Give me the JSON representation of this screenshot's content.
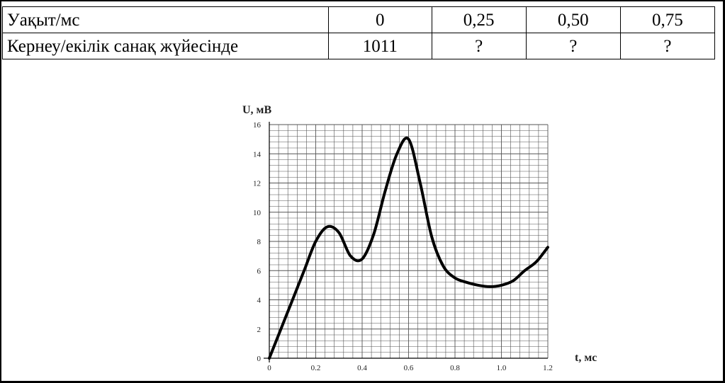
{
  "table": {
    "rows": [
      {
        "label": "Уақыт/мс",
        "cells": [
          "0",
          "0,25",
          "0,50",
          "0,75"
        ]
      },
      {
        "label": "Кернеу/екілік санақ жүйесінде",
        "cells": [
          "1011",
          "?",
          "?",
          "?"
        ]
      }
    ]
  },
  "chart_data": {
    "type": "line",
    "xlabel": "t, мс",
    "ylabel": "U, мВ",
    "xlim": [
      0,
      1.2
    ],
    "ylim": [
      0,
      16
    ],
    "x_ticks": [
      0,
      0.2,
      0.4,
      0.6,
      0.8,
      1.0,
      1.2
    ],
    "y_ticks": [
      0,
      2,
      4,
      6,
      8,
      10,
      12,
      14,
      16
    ],
    "x_tick_labels": [
      "0",
      "0.2",
      "0.4",
      "0.6",
      "0.8",
      "1.0",
      "1.2"
    ],
    "y_tick_labels": [
      "0",
      "2",
      "4",
      "6",
      "8",
      "10",
      "12",
      "14",
      "16"
    ],
    "grid": true,
    "series": [
      {
        "x": [
          0,
          0.05,
          0.1,
          0.15,
          0.2,
          0.25,
          0.3,
          0.35,
          0.4,
          0.45,
          0.5,
          0.55,
          0.6,
          0.65,
          0.7,
          0.75,
          0.8,
          0.85,
          0.9,
          0.95,
          1.0,
          1.05,
          1.1,
          1.15,
          1.2
        ],
        "y": [
          0,
          2.0,
          4.0,
          6.0,
          8.0,
          9.0,
          8.6,
          7.0,
          6.8,
          8.5,
          11.5,
          14.0,
          15.0,
          12.0,
          8.3,
          6.3,
          5.5,
          5.2,
          5.0,
          4.9,
          5.0,
          5.3,
          6.0,
          6.6,
          7.6
        ]
      }
    ]
  }
}
